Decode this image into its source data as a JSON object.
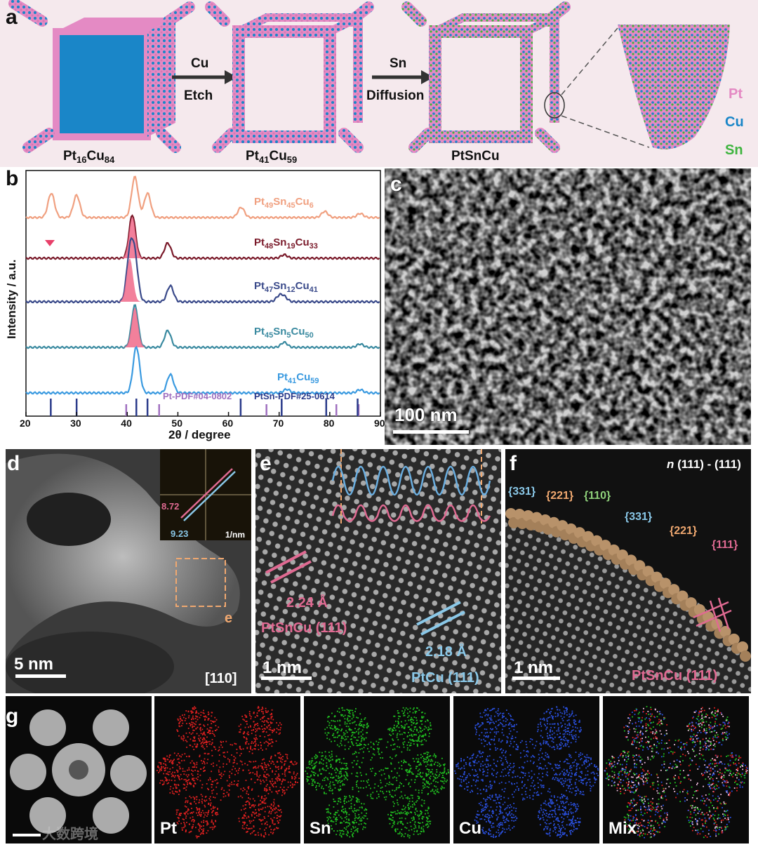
{
  "panel_a": {
    "label": "a",
    "step1": {
      "top": "Cu",
      "bottom": "Etch"
    },
    "step2": {
      "top": "Sn",
      "bottom": "Diffusion"
    },
    "legend": {
      "pt": "Pt",
      "cu": "Cu",
      "sn": "Sn"
    },
    "colors": {
      "pt": "#e489c3",
      "cu": "#1a86c8",
      "sn": "#3fb43f",
      "bg": "#f4e8ec"
    }
  },
  "panel_b": {
    "label": "b",
    "pdf_pt": "Pt-PDF#04-0802",
    "pdf_ptsn": "PtSn-PDF#25-0614"
  },
  "chart_data": {
    "type": "line",
    "xlabel": "2θ / degree",
    "ylabel": "Intensity / a.u.",
    "xlim": [
      20,
      90
    ],
    "xticks": [
      20,
      30,
      40,
      50,
      60,
      70,
      80,
      90
    ],
    "series": [
      {
        "name": "Pt49Sn45Cu6",
        "color": "#f0a080",
        "peaks": [
          [
            25,
            0.6
          ],
          [
            30,
            0.55
          ],
          [
            41.5,
            1.0
          ],
          [
            44,
            0.6
          ],
          [
            62.5,
            0.25
          ],
          [
            79,
            0.15
          ],
          [
            86,
            0.1
          ]
        ]
      },
      {
        "name": "Pt48Sn19Cu33",
        "color": "#7a1a2a",
        "peaks": [
          [
            41,
            1.0
          ],
          [
            48,
            0.35
          ],
          [
            71,
            0.08
          ]
        ]
      },
      {
        "name": "Pt47Sn12Cu41",
        "color": "#3a4a8a",
        "peaks": [
          [
            40.5,
            1.0
          ],
          [
            41.5,
            0.9
          ],
          [
            48.5,
            0.35
          ],
          [
            70,
            0.12
          ],
          [
            71,
            0.1
          ]
        ]
      },
      {
        "name": "Pt45Sn5Cu50",
        "color": "#3a8aa0",
        "peaks": [
          [
            41.5,
            1.0
          ],
          [
            48,
            0.4
          ],
          [
            71,
            0.12
          ],
          [
            86,
            0.08
          ]
        ]
      },
      {
        "name": "Pt41Cu59",
        "color": "#3a9ae0",
        "peaks": [
          [
            41.8,
            1.0
          ],
          [
            48.5,
            0.4
          ],
          [
            71.5,
            0.08
          ],
          [
            86,
            0.07
          ]
        ]
      }
    ],
    "reference_pt": [
      39.8,
      46.3,
      67.5,
      81.3,
      85.7
    ],
    "reference_ptsn": [
      24.9,
      30,
      41.8,
      44,
      62.4,
      70.5,
      79.3,
      85.5
    ]
  },
  "panel_c": {
    "label": "c",
    "scale": "100 nm"
  },
  "panel_d": {
    "label": "d",
    "scale": "5 nm",
    "zone": "[110]",
    "fft_a": "8.72",
    "fft_b": "9.23",
    "fft_unit": "1/nm",
    "box_label": "e"
  },
  "panel_e": {
    "label": "e",
    "scale": "1 nm",
    "d1": "2.24 Å",
    "phase1": "PtSnCu (111)",
    "d2": "2.18 Å",
    "phase2": "PtCu (111)"
  },
  "panel_f": {
    "label": "f",
    "scale": "1 nm",
    "header_n": "n",
    "header_rest": "(111) - (111)",
    "facets": [
      "{331}",
      "{221}",
      "{110}",
      "{331}",
      "{221}",
      "{111}"
    ],
    "phase": "PtSnCu (111)"
  },
  "panel_g": {
    "label": "g",
    "maps": [
      {
        "name": "",
        "color": "#dddddd"
      },
      {
        "name": "Pt",
        "color": "#e02020"
      },
      {
        "name": "Sn",
        "color": "#20c020"
      },
      {
        "name": "Cu",
        "color": "#2a50e0"
      },
      {
        "name": "Mix",
        "color": "#e0a0c0"
      }
    ],
    "watermark": "大数跨境"
  }
}
